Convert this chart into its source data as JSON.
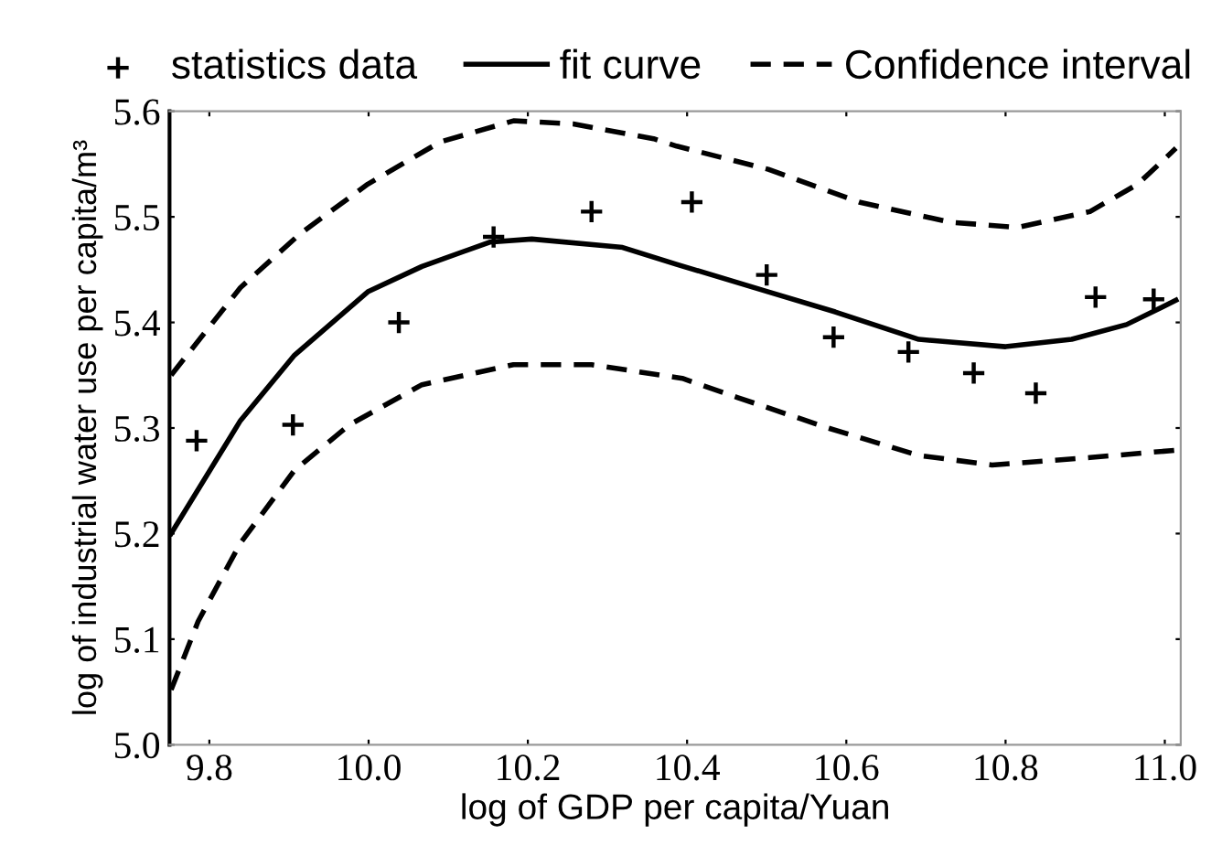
{
  "chart_data": {
    "type": "line",
    "xlabel": "log of GDP per capita/Yuan",
    "ylabel": "log of industrial water use per capita/m³",
    "xlim": [
      9.75,
      11.02
    ],
    "xticks": [
      9.8,
      {
        "value": 10,
        "label": "10.0"
      },
      10.2,
      10.4,
      10.6,
      10.8,
      {
        "value": 11,
        "label": "11.0"
      }
    ],
    "ylim": [
      5.0,
      5.6
    ],
    "yticks": [
      {
        "value": 5,
        "label": "5.0"
      },
      5.1,
      5.2,
      5.3,
      5.4,
      5.5,
      5.6
    ],
    "grid": false,
    "legend": "top",
    "series": [
      {
        "name": "statistics data",
        "type": "scatter",
        "color": "#000000",
        "marker": "cross",
        "x": [
          9.784,
          9.905,
          10.038,
          10.157,
          10.28,
          10.406,
          10.5,
          10.584,
          10.678,
          10.76,
          10.838,
          10.913,
          10.986
        ],
        "values": [
          5.288,
          5.303,
          5.4,
          5.481,
          5.505,
          5.514,
          5.445,
          5.386,
          5.372,
          5.352,
          5.333,
          5.424,
          5.422
        ]
      },
      {
        "name": "fit curve",
        "color": "#000000",
        "line_style": "solid",
        "x": [
          9.752,
          9.839,
          9.907,
          9.999,
          10.067,
          10.152,
          10.205,
          10.319,
          10.387,
          10.502,
          10.586,
          10.691,
          10.8,
          10.883,
          10.952,
          11.014
        ],
        "values": [
          5.2,
          5.307,
          5.369,
          5.429,
          5.453,
          5.476,
          5.479,
          5.471,
          5.455,
          5.429,
          5.41,
          5.384,
          5.377,
          5.384,
          5.398,
          5.421
        ]
      },
      {
        "name": "Confidence interval",
        "color": "#000000",
        "line_style": "dashed",
        "x": [
          9.752,
          9.839,
          9.914,
          9.999,
          10.09,
          10.182,
          10.257,
          10.358,
          10.387,
          10.502,
          10.616,
          10.73,
          10.815,
          10.906,
          10.966,
          11.014
        ],
        "values": [
          5.35,
          5.433,
          5.484,
          5.531,
          5.571,
          5.591,
          5.588,
          5.574,
          5.567,
          5.545,
          5.514,
          5.495,
          5.49,
          5.505,
          5.531,
          5.565
        ]
      },
      {
        "color": "#000000",
        "line_style": "dashed",
        "x": [
          9.752,
          9.786,
          9.839,
          9.907,
          9.976,
          10.067,
          10.182,
          10.28,
          10.394,
          10.463,
          10.577,
          10.691,
          10.783,
          10.906,
          11.014
        ],
        "values": [
          5.052,
          5.117,
          5.191,
          5.26,
          5.303,
          5.341,
          5.36,
          5.36,
          5.347,
          5.329,
          5.3,
          5.274,
          5.265,
          5.272,
          5.279
        ]
      }
    ]
  }
}
